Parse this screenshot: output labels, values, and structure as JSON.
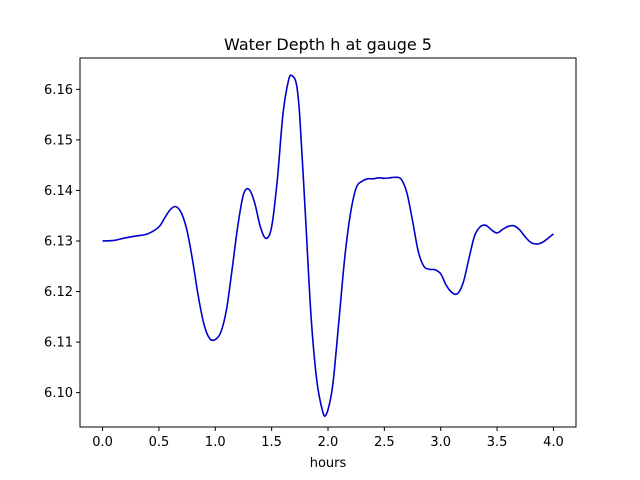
{
  "chart_data": {
    "type": "line",
    "title": "Water Depth h at gauge 5",
    "xlabel": "hours",
    "ylabel": "",
    "xlim": [
      -0.2,
      4.2
    ],
    "ylim": [
      6.0932,
      6.1662
    ],
    "xticks": [
      0.0,
      0.5,
      1.0,
      1.5,
      2.0,
      2.5,
      3.0,
      3.5,
      4.0
    ],
    "xtick_labels": [
      "0.0",
      "0.5",
      "1.0",
      "1.5",
      "2.0",
      "2.5",
      "3.0",
      "3.5",
      "4.0"
    ],
    "yticks": [
      6.1,
      6.11,
      6.12,
      6.13,
      6.14,
      6.15,
      6.16
    ],
    "ytick_labels": [
      "6.10",
      "6.11",
      "6.12",
      "6.13",
      "6.14",
      "6.15",
      "6.16"
    ],
    "grid": false,
    "series": [
      {
        "color": "#0000cc",
        "x": [
          0.0,
          0.1,
          0.2,
          0.3,
          0.4,
          0.5,
          0.55,
          0.6,
          0.65,
          0.7,
          0.75,
          0.8,
          0.85,
          0.9,
          0.95,
          1.0,
          1.05,
          1.1,
          1.15,
          1.2,
          1.25,
          1.3,
          1.35,
          1.4,
          1.45,
          1.5,
          1.55,
          1.6,
          1.65,
          1.68,
          1.72,
          1.75,
          1.8,
          1.85,
          1.9,
          1.95,
          1.98,
          2.02,
          2.05,
          2.1,
          2.15,
          2.2,
          2.25,
          2.3,
          2.35,
          2.4,
          2.45,
          2.5,
          2.55,
          2.6,
          2.65,
          2.7,
          2.75,
          2.8,
          2.85,
          2.9,
          2.95,
          3.0,
          3.05,
          3.1,
          3.15,
          3.2,
          3.25,
          3.3,
          3.35,
          3.4,
          3.45,
          3.5,
          3.55,
          3.6,
          3.65,
          3.7,
          3.75,
          3.8,
          3.85,
          3.9,
          3.95,
          4.0
        ],
        "y": [
          6.13,
          6.1301,
          6.1306,
          6.131,
          6.1314,
          6.1328,
          6.1345,
          6.1362,
          6.1368,
          6.1355,
          6.132,
          6.126,
          6.119,
          6.1135,
          6.1107,
          6.1105,
          6.112,
          6.1165,
          6.1245,
          6.133,
          6.1392,
          6.1402,
          6.1375,
          6.1328,
          6.1305,
          6.1328,
          6.142,
          6.155,
          6.1618,
          6.1627,
          6.161,
          6.1545,
          6.135,
          6.115,
          6.1025,
          6.0965,
          6.0955,
          6.0985,
          6.103,
          6.115,
          6.127,
          6.1355,
          6.1405,
          6.1418,
          6.1423,
          6.1423,
          6.1425,
          6.1424,
          6.1425,
          6.1426,
          6.1422,
          6.1395,
          6.134,
          6.128,
          6.125,
          6.1244,
          6.1243,
          6.1235,
          6.1212,
          6.1198,
          6.1196,
          6.1218,
          6.1265,
          6.131,
          6.1328,
          6.1331,
          6.1322,
          6.1316,
          6.1323,
          6.1329,
          6.133,
          6.1322,
          6.1308,
          6.1297,
          6.1294,
          6.1297,
          6.1305,
          6.1314
        ]
      }
    ]
  }
}
